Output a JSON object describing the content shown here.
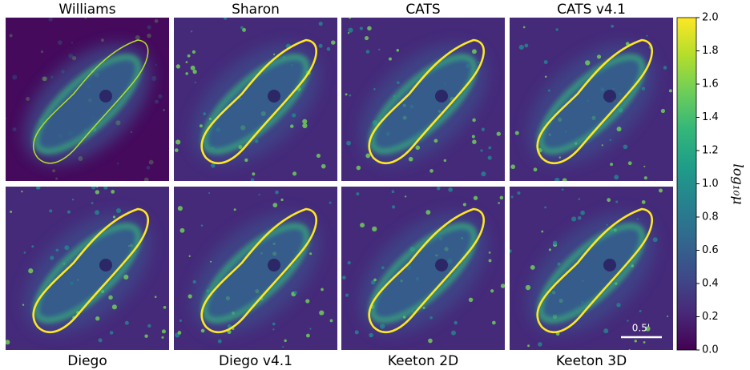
{
  "chart_data": {
    "type": "image-grid",
    "panels": [
      {
        "title": "Williams"
      },
      {
        "title": "Sharon"
      },
      {
        "title": "CATS"
      },
      {
        "title": "CATS v4.1"
      },
      {
        "title": "Diego"
      },
      {
        "title": "Diego v4.1"
      },
      {
        "title": "Keeton 2D"
      },
      {
        "title": "Keeton 3D"
      }
    ],
    "scale_bar": "0.5'",
    "colorbar": {
      "label": "log₁₀μ",
      "colors": [
        "#440154",
        "#482878",
        "#3e4a89",
        "#31688e",
        "#26828e",
        "#1f9e89",
        "#35b779",
        "#6ece58",
        "#b5de2b",
        "#fde725"
      ],
      "ylim": [
        0,
        2
      ],
      "yticks": [
        {
          "value": 0,
          "label": "0.0"
        },
        {
          "value": 0.2,
          "label": "0.2"
        },
        {
          "value": 0.4,
          "label": "0.4"
        },
        {
          "value": 0.6,
          "label": "0.6"
        },
        {
          "value": 0.8,
          "label": "0.8"
        },
        {
          "value": 1.0,
          "label": "1.0"
        },
        {
          "value": 1.2,
          "label": "1.2"
        },
        {
          "value": 1.4,
          "label": "1.4"
        },
        {
          "value": 1.6,
          "label": "1.6"
        },
        {
          "value": 1.8,
          "label": "1.8"
        },
        {
          "value": 2.0,
          "label": "2.0"
        }
      ]
    }
  }
}
